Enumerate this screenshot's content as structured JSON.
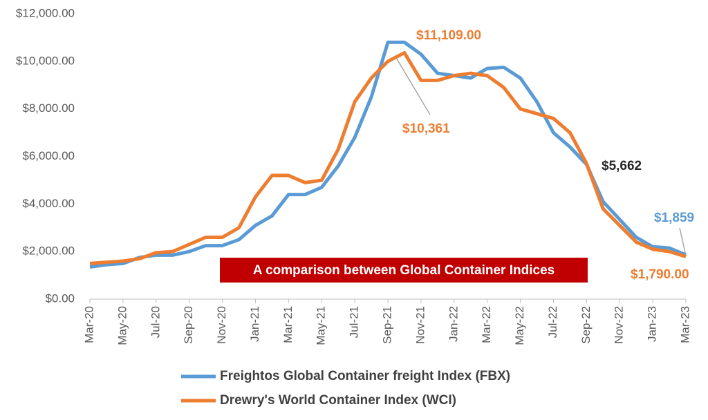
{
  "chart_data": {
    "type": "line",
    "categories": [
      "Mar-20",
      null,
      "May-20",
      null,
      "Jul-20",
      null,
      "Sep-20",
      null,
      "Nov-20",
      null,
      "Jan-21",
      null,
      "Mar-21",
      null,
      "May-21",
      null,
      "Jul-21",
      null,
      "Sep-21",
      null,
      "Nov-21",
      null,
      "Jan-22",
      null,
      "Mar-22",
      null,
      "May-22",
      null,
      "Jul-22",
      null,
      "Sep-22",
      null,
      "Nov-22",
      null,
      "Jan-23",
      null,
      "Mar-23"
    ],
    "series": [
      {
        "name": "Freightos Global Container freight Index (FBX)",
        "color": "#5b9bd5",
        "values": [
          1350,
          1450,
          1500,
          1750,
          1850,
          1850,
          2000,
          2250,
          2250,
          2500,
          3100,
          3500,
          4400,
          4400,
          4700,
          5600,
          6800,
          8500,
          10800,
          10800,
          10300,
          9500,
          9400,
          9300,
          9700,
          9750,
          9300,
          8300,
          7000,
          6400,
          5662,
          4100,
          3350,
          2600,
          2200,
          2150,
          1859
        ]
      },
      {
        "name": "Drewry's World Container Index (WCI)",
        "color": "#ed7d31",
        "values": [
          1500,
          1550,
          1600,
          1700,
          1950,
          2000,
          2300,
          2600,
          2600,
          3000,
          4300,
          5200,
          5200,
          4900,
          5000,
          6300,
          8300,
          9300,
          10000,
          10361,
          9200,
          9200,
          9400,
          9500,
          9400,
          8900,
          8000,
          7800,
          7600,
          7000,
          5700,
          3800,
          3100,
          2400,
          2100,
          2000,
          1790
        ]
      }
    ],
    "ylim": [
      0,
      12000
    ],
    "yticks": [
      {
        "value": 0,
        "label": "$0.00"
      },
      {
        "value": 2000,
        "label": "$2,000.00"
      },
      {
        "value": 4000,
        "label": "$4,000.00"
      },
      {
        "value": 6000,
        "label": "$6,000.00"
      },
      {
        "value": 8000,
        "label": "$8,000.00"
      },
      {
        "value": 10000,
        "label": "$10,000.00"
      },
      {
        "value": 12000,
        "label": "$12,000.00"
      }
    ],
    "grid": false,
    "legend": "bottom",
    "title": "A comparison between Global Container Indices",
    "annotations": [
      "$11,109.00",
      "$10,361",
      "$5,662",
      "$1,859",
      "$1,790.00"
    ]
  }
}
